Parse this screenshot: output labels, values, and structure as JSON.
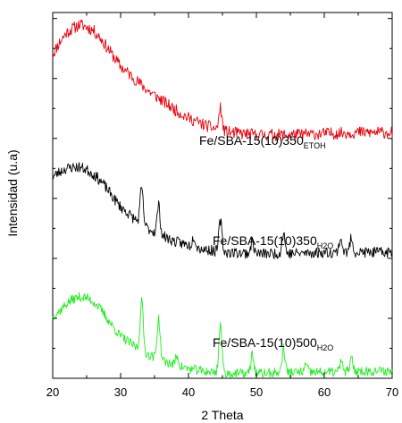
{
  "chart_data": {
    "type": "line",
    "title": "",
    "xlabel": "2 Theta",
    "ylabel": "Intensidad (u.a)",
    "xlim": [
      20,
      70
    ],
    "x_ticks": [
      "20",
      "30",
      "40",
      "50",
      "60",
      "70"
    ],
    "y_ticks_labeled": false,
    "grid": false,
    "legend": "none",
    "series": [
      {
        "name": "Fe/SBA-15(10)350",
        "name_sub": "ETOH",
        "color": "#e8000b",
        "offset": 2.0,
        "noise": 0.05,
        "seed": 11,
        "points": [
          [
            20,
            0.7
          ],
          [
            21,
            0.8
          ],
          [
            22,
            0.88
          ],
          [
            23,
            0.92
          ],
          [
            24,
            0.95
          ],
          [
            25,
            0.93
          ],
          [
            26,
            0.9
          ],
          [
            27,
            0.84
          ],
          [
            28,
            0.76
          ],
          [
            29,
            0.68
          ],
          [
            30,
            0.6
          ],
          [
            32,
            0.5
          ],
          [
            34,
            0.4
          ],
          [
            36,
            0.32
          ],
          [
            38,
            0.24
          ],
          [
            40,
            0.17
          ],
          [
            42,
            0.12
          ],
          [
            44,
            0.08
          ],
          [
            46,
            0.05
          ],
          [
            50,
            0.03
          ],
          [
            55,
            0.03
          ],
          [
            60,
            0.04
          ],
          [
            65,
            0.05
          ],
          [
            70,
            0.05
          ]
        ],
        "peaks": [
          [
            44.7,
            0.18
          ]
        ]
      },
      {
        "name": "Fe/SBA-15(10)350",
        "name_sub": "H2O",
        "color": "#000000",
        "offset": 1.0,
        "noise": 0.045,
        "seed": 23,
        "points": [
          [
            20,
            0.68
          ],
          [
            21,
            0.72
          ],
          [
            22,
            0.75
          ],
          [
            23,
            0.76
          ],
          [
            24,
            0.76
          ],
          [
            25,
            0.74
          ],
          [
            26,
            0.7
          ],
          [
            27,
            0.65
          ],
          [
            28,
            0.58
          ],
          [
            29,
            0.5
          ],
          [
            30,
            0.43
          ],
          [
            32,
            0.33
          ],
          [
            34,
            0.25
          ],
          [
            36,
            0.19
          ],
          [
            38,
            0.14
          ],
          [
            40,
            0.11
          ],
          [
            42,
            0.08
          ],
          [
            44,
            0.06
          ],
          [
            46,
            0.05
          ],
          [
            50,
            0.04
          ],
          [
            55,
            0.04
          ],
          [
            60,
            0.05
          ],
          [
            65,
            0.05
          ],
          [
            70,
            0.05
          ]
        ],
        "peaks": [
          [
            33.1,
            0.3
          ],
          [
            35.6,
            0.24
          ],
          [
            40.8,
            0.09
          ],
          [
            44.7,
            0.26
          ],
          [
            49.4,
            0.1
          ],
          [
            54.0,
            0.17
          ],
          [
            62.4,
            0.12
          ],
          [
            64.0,
            0.12
          ]
        ]
      },
      {
        "name": "Fe/SBA-15(10)500",
        "name_sub": "H2O",
        "color": "#22ee22",
        "offset": 0.0,
        "noise": 0.04,
        "seed": 37,
        "points": [
          [
            20,
            0.52
          ],
          [
            21,
            0.56
          ],
          [
            22,
            0.62
          ],
          [
            23,
            0.66
          ],
          [
            24,
            0.68
          ],
          [
            25,
            0.67
          ],
          [
            26,
            0.64
          ],
          [
            27,
            0.58
          ],
          [
            28,
            0.5
          ],
          [
            29,
            0.42
          ],
          [
            30,
            0.35
          ],
          [
            32,
            0.27
          ],
          [
            34,
            0.2
          ],
          [
            36,
            0.15
          ],
          [
            38,
            0.11
          ],
          [
            40,
            0.08
          ],
          [
            42,
            0.06
          ],
          [
            44,
            0.05
          ],
          [
            46,
            0.04
          ],
          [
            50,
            0.04
          ],
          [
            55,
            0.05
          ],
          [
            60,
            0.05
          ],
          [
            65,
            0.06
          ],
          [
            70,
            0.06
          ]
        ],
        "peaks": [
          [
            33.1,
            0.42
          ],
          [
            35.6,
            0.34
          ],
          [
            38.3,
            0.08
          ],
          [
            44.7,
            0.4
          ],
          [
            49.4,
            0.16
          ],
          [
            54.0,
            0.2
          ],
          [
            57.3,
            0.06
          ],
          [
            62.5,
            0.08
          ],
          [
            64.0,
            0.1
          ]
        ]
      }
    ]
  }
}
